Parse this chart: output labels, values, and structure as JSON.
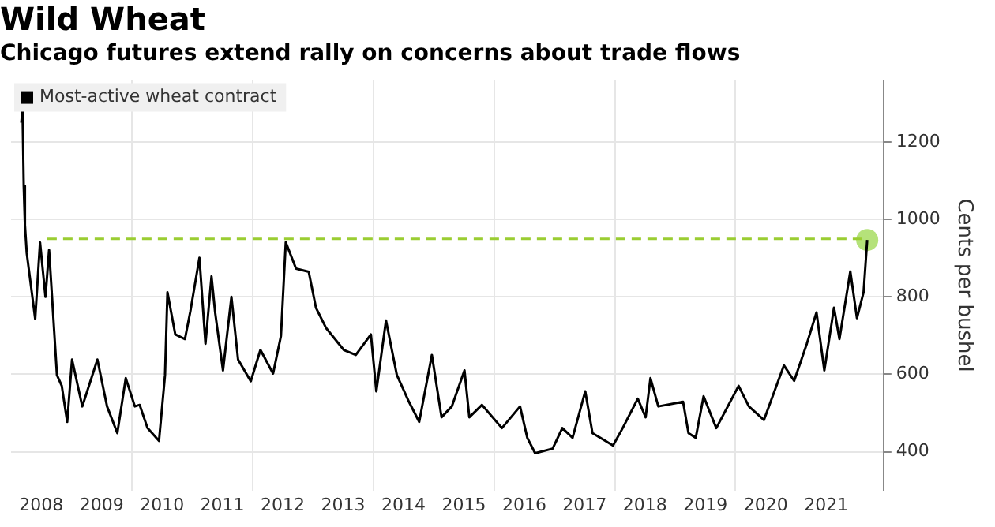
{
  "chart_data": {
    "type": "line",
    "title": "Wild Wheat",
    "subtitle": "Chicago futures extend rally on concerns about trade flows",
    "ylabel": "Cents per bushel",
    "xlim": [
      2008,
      2022.45
    ],
    "ylim": [
      300,
      1360
    ],
    "yticks": [
      400,
      600,
      800,
      1000,
      1200
    ],
    "xticks": [
      {
        "value": 2008.5,
        "label": "2008"
      },
      {
        "value": 2009.5,
        "label": "2009"
      },
      {
        "value": 2010,
        "label": null
      },
      {
        "value": 2010.5,
        "label": "2010"
      },
      {
        "value": 2011.5,
        "label": "2011"
      },
      {
        "value": 2012,
        "label": null
      },
      {
        "value": 2012.5,
        "label": "2012"
      },
      {
        "value": 2013.5,
        "label": "2013"
      },
      {
        "value": 2014,
        "label": null
      },
      {
        "value": 2014.5,
        "label": "2014"
      },
      {
        "value": 2015.5,
        "label": "2015"
      },
      {
        "value": 2016,
        "label": null
      },
      {
        "value": 2016.5,
        "label": "2016"
      },
      {
        "value": 2017.5,
        "label": "2017"
      },
      {
        "value": 2018,
        "label": null
      },
      {
        "value": 2018.5,
        "label": "2018"
      },
      {
        "value": 2019.5,
        "label": "2019"
      },
      {
        "value": 2020,
        "label": null
      },
      {
        "value": 2020.5,
        "label": "2020"
      },
      {
        "value": 2021.5,
        "label": "2021"
      }
    ],
    "grid": true,
    "legend": "top left",
    "marker": "none",
    "line_style": "solid",
    "series": [
      {
        "name": "Most-active wheat contract",
        "color": "#000000",
        "x": [
          2008.17,
          2008.19,
          2008.21,
          2008.23,
          2008.26,
          2008.4,
          2008.48,
          2008.57,
          2008.63,
          2008.76,
          2008.84,
          2008.93,
          2009.01,
          2009.18,
          2009.43,
          2009.59,
          2009.76,
          2009.9,
          2010.05,
          2010.13,
          2010.26,
          2010.45,
          2010.55,
          2010.59,
          2010.72,
          2010.88,
          2010.97,
          2011.12,
          2011.22,
          2011.32,
          2011.38,
          2011.51,
          2011.65,
          2011.76,
          2011.97,
          2012.13,
          2012.34,
          2012.47,
          2012.55,
          2012.72,
          2012.93,
          2013.05,
          2013.22,
          2013.51,
          2013.71,
          2013.96,
          2014.05,
          2014.21,
          2014.39,
          2014.59,
          2014.76,
          2014.97,
          2015.13,
          2015.3,
          2015.51,
          2015.59,
          2015.8,
          2016.13,
          2016.43,
          2016.55,
          2016.68,
          2016.97,
          2017.13,
          2017.3,
          2017.51,
          2017.63,
          2017.97,
          2018.13,
          2018.38,
          2018.51,
          2018.59,
          2018.72,
          2019.13,
          2019.22,
          2019.34,
          2019.47,
          2019.68,
          2020.05,
          2020.22,
          2020.47,
          2020.8,
          2020.97,
          2021.18,
          2021.34,
          2021.47,
          2021.63,
          2021.72,
          2021.9,
          2022.01,
          2022.12,
          2022.18
        ],
        "values": [
          1250,
          1285,
          1087,
          986,
          913,
          743,
          941,
          800,
          921,
          598,
          570,
          477,
          638,
          517,
          638,
          517,
          448,
          590,
          517,
          521,
          461,
          428,
          598,
          812,
          703,
          691,
          763,
          901,
          679,
          853,
          760,
          610,
          800,
          638,
          582,
          663,
          602,
          699,
          941,
          873,
          865,
          772,
          719,
          663,
          650,
          703,
          556,
          739,
          598,
          529,
          477,
          650,
          489,
          517,
          610,
          489,
          521,
          461,
          517,
          436,
          396,
          408,
          461,
          436,
          556,
          448,
          416,
          461,
          537,
          489,
          590,
          517,
          529,
          448,
          436,
          543,
          461,
          570,
          517,
          482,
          623,
          583,
          679,
          760,
          610,
          772,
          691,
          866,
          745,
          812,
          947
        ]
      },
      {
        "type": "line",
        "color": "#9acd32",
        "line_style": "dashed",
        "x": [
          2008.6,
          2022.18
        ],
        "values": [
          950,
          950
        ]
      },
      {
        "type": "scatter",
        "color": "#b5e27a",
        "marker": "circle",
        "x": [
          2022.18
        ],
        "values": [
          947
        ]
      }
    ]
  }
}
